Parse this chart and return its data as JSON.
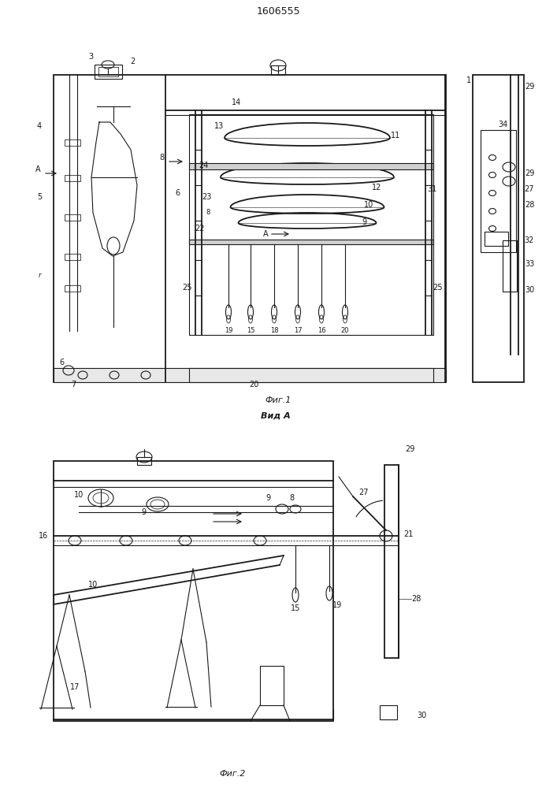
{
  "title": "1606555",
  "fig1_label": "Фиг.1",
  "fig2_label": "Фиг.2",
  "view_label": "Вид A",
  "bg_color": "#ffffff",
  "line_color": "#1a1a1a",
  "line_width": 0.8
}
